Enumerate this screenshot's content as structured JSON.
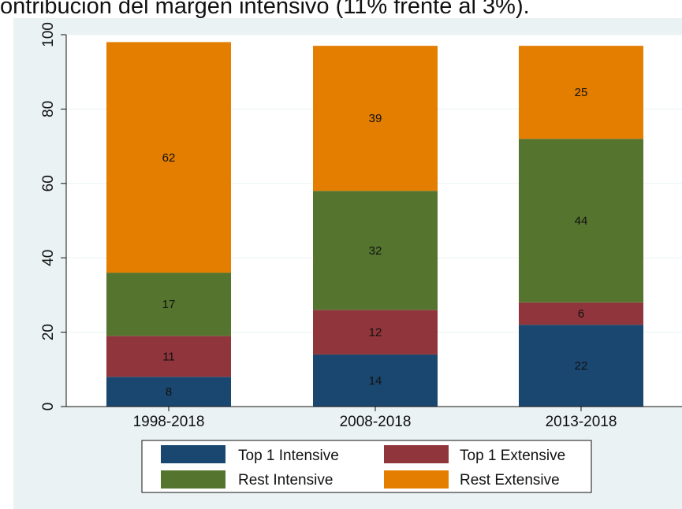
{
  "caption": "ontribución del margen intensivo (11% frente al 3%).",
  "colors": {
    "Top 1 Intensive": "#1a476f",
    "Top 1 Extensive": "#90353b",
    "Rest Intensive": "#55752f",
    "Rest Extensive": "#e37e00",
    "plot_background": "#ffffff",
    "figure_background": "#eaf2f3",
    "grid": "#eaf2f3"
  },
  "chart_data": {
    "type": "bar",
    "stacked": true,
    "categories": [
      "1998-2018",
      "2008-2018",
      "2013-2018"
    ],
    "series": [
      {
        "name": "Top 1 Intensive",
        "values": [
          8,
          14,
          22
        ]
      },
      {
        "name": "Top 1 Extensive",
        "values": [
          11,
          12,
          6
        ]
      },
      {
        "name": "Rest Intensive",
        "values": [
          17,
          32,
          44
        ]
      },
      {
        "name": "Rest Extensive",
        "values": [
          62,
          39,
          25
        ]
      }
    ],
    "title": "",
    "xlabel": "",
    "ylabel": "",
    "ylim": [
      0,
      100
    ],
    "yticks": [
      0,
      20,
      40,
      60,
      80,
      100
    ],
    "grid": true,
    "legend": "bottom",
    "legend_order": [
      "Top 1 Intensive",
      "Top 1 Extensive",
      "Rest Intensive",
      "Rest Extensive"
    ]
  }
}
